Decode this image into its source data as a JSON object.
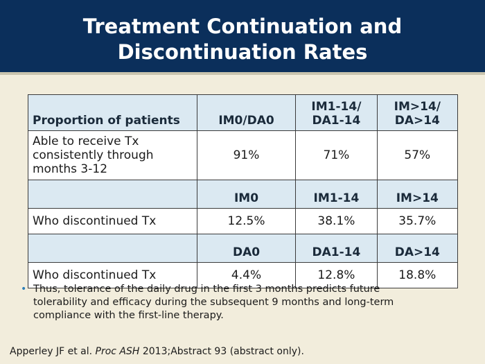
{
  "title": {
    "line1": "Treatment Continuation and",
    "line2": "Discontinuation Rates"
  },
  "table": {
    "header1": {
      "label": "Proportion of patients",
      "col1": "IM0/DA0",
      "col2_line1": "IM1-14/",
      "col2_line2": "DA1-14",
      "col3_line1": "IM>14/",
      "col3_line2": "DA>14"
    },
    "row1": {
      "label_line1": "Able to receive Tx",
      "label_line2": "consistently through",
      "label_line3": "months 3-12",
      "v1": "91%",
      "v2": "71%",
      "v3": "57%"
    },
    "header2": {
      "col1": "IM0",
      "col2": "IM1-14",
      "col3": "IM>14"
    },
    "row2": {
      "label": "Who discontinued Tx",
      "v1": "12.5%",
      "v2": "38.1%",
      "v3": "35.7%"
    },
    "header3": {
      "col1": "DA0",
      "col2": "DA1-14",
      "col3": "DA>14"
    },
    "row3": {
      "label": "Who discontinued Tx",
      "v1": "4.4%",
      "v2": "12.8%",
      "v3": "18.8%"
    }
  },
  "bullet": {
    "line1": "Thus, tolerance of the daily drug in the first 3 months predicts future",
    "line2": "tolerability and efficacy during the subsequent 9 months and long-term",
    "line3": "compliance with the first-line therapy."
  },
  "citation": {
    "author": "Apperley JF et al. ",
    "journal": "Proc ASH",
    "rest": " 2013;Abstract 93 (abstract only)."
  },
  "colors": {
    "header_bg": "#0b2f5b",
    "page_bg": "#f2eddc",
    "table_header_bg": "#dbe9f2",
    "bullet": "#2e7fb8"
  }
}
